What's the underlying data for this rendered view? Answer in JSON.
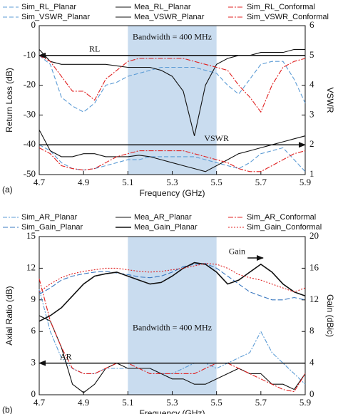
{
  "chart_data": [
    {
      "type": "line",
      "panel_label": "(a)",
      "xlabel": "Frequency (GHz)",
      "ylabel": "Return Loss (dB)",
      "y2label": "VSWR",
      "x": [
        4.7,
        4.75,
        4.8,
        4.85,
        4.9,
        4.95,
        5.0,
        5.05,
        5.1,
        5.15,
        5.2,
        5.25,
        5.3,
        5.35,
        5.4,
        5.45,
        5.5,
        5.55,
        5.6,
        5.65,
        5.7,
        5.75,
        5.8,
        5.85,
        5.9
      ],
      "xlim": [
        4.7,
        5.9
      ],
      "xticks": [
        4.7,
        4.9,
        5.1,
        5.3,
        5.5,
        5.7,
        5.9
      ],
      "ylim": [
        -50,
        0
      ],
      "yticks": [
        -50,
        -40,
        -30,
        -20,
        -10,
        0
      ],
      "y2lim": [
        1,
        6
      ],
      "y2ticks": [
        1,
        2,
        3,
        4,
        5,
        6
      ],
      "band": {
        "range": [
          5.1,
          5.5
        ],
        "label": "Bandwidth = 400 MHz",
        "label_y": -4,
        "color": "#c9dcef"
      },
      "hlines": [
        {
          "label": "RL",
          "value": -10,
          "direction": "left",
          "label_x": 4.95
        },
        {
          "label": "VSWR",
          "value": 2,
          "axis": "y2",
          "direction": "right",
          "label_x": 5.5
        }
      ],
      "series": [
        {
          "name": "Sim_RL_Planar",
          "color": "#5b9bd5",
          "dash": "6,3",
          "values": [
            -10,
            -13,
            -24,
            -27,
            -29,
            -26,
            -20,
            -19,
            -17,
            -16,
            -15,
            -14,
            -14,
            -14,
            -14,
            -15,
            -16,
            -20,
            -23,
            -18,
            -13,
            -12,
            -12,
            -18,
            -26
          ]
        },
        {
          "name": "Mea_RL_Planar",
          "color": "#111111",
          "dash": "",
          "values": [
            -8,
            -12,
            -13,
            -13,
            -13,
            -13,
            -13,
            -13.5,
            -14,
            -14,
            -14,
            -15,
            -17,
            -22,
            -37,
            -20,
            -13,
            -11,
            -10,
            -10,
            -9,
            -9,
            -9,
            -8,
            -8
          ]
        },
        {
          "name": "Sim_RL_Conformal",
          "color": "#e02020",
          "dash": "7,2,2,2",
          "values": [
            -10,
            -12,
            -17,
            -22,
            -22,
            -25,
            -18,
            -15,
            -12,
            -11,
            -11,
            -11,
            -11,
            -11,
            -12,
            -13,
            -14,
            -15,
            -20,
            -24,
            -29,
            -20,
            -14,
            -12,
            -11
          ]
        },
        {
          "name": "Sim_VSWR_Planar",
          "color": "#5b9bd5",
          "dash": "6,3",
          "axis": "y2",
          "values": [
            2.0,
            1.8,
            1.4,
            1.2,
            1.15,
            1.2,
            1.3,
            1.4,
            1.5,
            1.5,
            1.6,
            1.6,
            1.6,
            1.6,
            1.6,
            1.5,
            1.4,
            1.3,
            1.2,
            1.4,
            1.7,
            1.8,
            1.9,
            1.5,
            1.1
          ]
        },
        {
          "name": "Mea_VSWR_Planar",
          "color": "#111111",
          "dash": "",
          "axis": "y2",
          "values": [
            2.5,
            1.8,
            1.6,
            1.6,
            1.7,
            1.7,
            1.6,
            1.6,
            1.6,
            1.65,
            1.6,
            1.5,
            1.4,
            1.3,
            1.2,
            1.1,
            1.3,
            1.5,
            1.7,
            1.8,
            1.9,
            2.0,
            2.1,
            2.2,
            2.3
          ]
        },
        {
          "name": "Sim_VSWR_Conformal",
          "color": "#e02020",
          "dash": "7,2,2,2",
          "axis": "y2",
          "values": [
            1.9,
            1.7,
            1.3,
            1.2,
            1.15,
            1.2,
            1.4,
            1.6,
            1.7,
            1.8,
            1.8,
            1.8,
            1.8,
            1.8,
            1.7,
            1.6,
            1.5,
            1.4,
            1.2,
            1.1,
            1.1,
            1.3,
            1.5,
            1.7,
            1.8
          ]
        }
      ]
    },
    {
      "type": "line",
      "panel_label": "(b)",
      "xlabel": "Frequency (GHz)",
      "ylabel": "Axial Ratio (dB)",
      "y2label": "Gain (dBic)",
      "x": [
        4.7,
        4.75,
        4.8,
        4.85,
        4.9,
        4.95,
        5.0,
        5.05,
        5.1,
        5.15,
        5.2,
        5.25,
        5.3,
        5.35,
        5.4,
        5.45,
        5.5,
        5.55,
        5.6,
        5.65,
        5.7,
        5.75,
        5.8,
        5.85,
        5.9
      ],
      "xlim": [
        4.7,
        5.9
      ],
      "xticks": [
        4.7,
        4.9,
        5.1,
        5.3,
        5.5,
        5.7,
        5.9
      ],
      "ylim": [
        0,
        15
      ],
      "yticks": [
        0,
        3,
        6,
        9,
        12,
        15
      ],
      "y2lim": [
        0,
        20
      ],
      "y2ticks": [
        0,
        4,
        8,
        12,
        16,
        20
      ],
      "band": {
        "range": [
          5.1,
          5.5
        ],
        "label": "Bandwidth = 400 MHz",
        "label_y": 6.3,
        "color": "#c9dcef"
      },
      "hlines": [
        {
          "label": "AR",
          "value": 3,
          "direction": "left",
          "label_x": 4.82
        },
        {
          "label": "Gain",
          "value": 17.3,
          "axis": "y2",
          "direction": "right",
          "label_x": 5.63,
          "x": [
            5.64,
            5.71
          ]
        }
      ],
      "series": [
        {
          "name": "Sim_AR_Planar",
          "color": "#5b9bd5",
          "dash": "6,2,2,2",
          "values": [
            10,
            6,
            3.5,
            2.5,
            2,
            2,
            2.5,
            2.5,
            2.5,
            2.5,
            2.5,
            2,
            2,
            2.5,
            3,
            3,
            2.5,
            3,
            3.5,
            4,
            6,
            4,
            3,
            2,
            1
          ]
        },
        {
          "name": "Mea_AR_Planar",
          "color": "#111111",
          "dash": "",
          "values": [
            7.5,
            7,
            4.5,
            1,
            0.2,
            1,
            2.5,
            3,
            2.5,
            2.5,
            2.5,
            2,
            1.5,
            1.5,
            1,
            1,
            1.5,
            2,
            2.5,
            2,
            2,
            1,
            1,
            0.5,
            2
          ]
        },
        {
          "name": "Sim_AR_Conformal",
          "color": "#e02020",
          "dash": "7,2,2,2",
          "values": [
            11,
            7,
            4.5,
            2.5,
            2,
            2,
            2.5,
            3,
            3,
            2.5,
            2,
            2,
            2,
            2,
            2,
            2.5,
            3,
            3,
            2.5,
            2,
            1.5,
            1,
            0.5,
            0.3,
            2
          ]
        },
        {
          "name": "Sim_Gain_Planar",
          "color": "#3a78c0",
          "dash": "7,3",
          "axis": "y2",
          "values": [
            12.7,
            13.5,
            14.5,
            15,
            15.3,
            15.5,
            15.6,
            15.4,
            15.2,
            14.9,
            14.8,
            15,
            15.5,
            16.2,
            16.5,
            16.6,
            16,
            15,
            14,
            13,
            12.5,
            12,
            12,
            12.3,
            12
          ]
        },
        {
          "name": "Mea_Gain_Planar",
          "color": "#111111",
          "dash": "",
          "width": 1.6,
          "axis": "y2",
          "values": [
            9.3,
            10,
            11,
            12.5,
            14,
            15,
            15.3,
            15.5,
            15,
            14.5,
            14,
            14.2,
            15,
            16,
            16.7,
            16.5,
            15.5,
            14,
            14.5,
            15.5,
            16.5,
            15.5,
            14,
            13,
            12.5
          ]
        },
        {
          "name": "Sim_Gain_Conformal",
          "color": "#e02020",
          "dash": "2,2",
          "axis": "y2",
          "values": [
            13,
            14,
            14.8,
            15.3,
            15.6,
            15.8,
            16,
            16,
            15.8,
            15.6,
            15.5,
            15.6,
            15.8,
            16,
            16.3,
            16.6,
            16.5,
            16,
            15.2,
            14.8,
            14.5,
            14,
            13.5,
            13,
            13.5
          ]
        }
      ]
    }
  ]
}
